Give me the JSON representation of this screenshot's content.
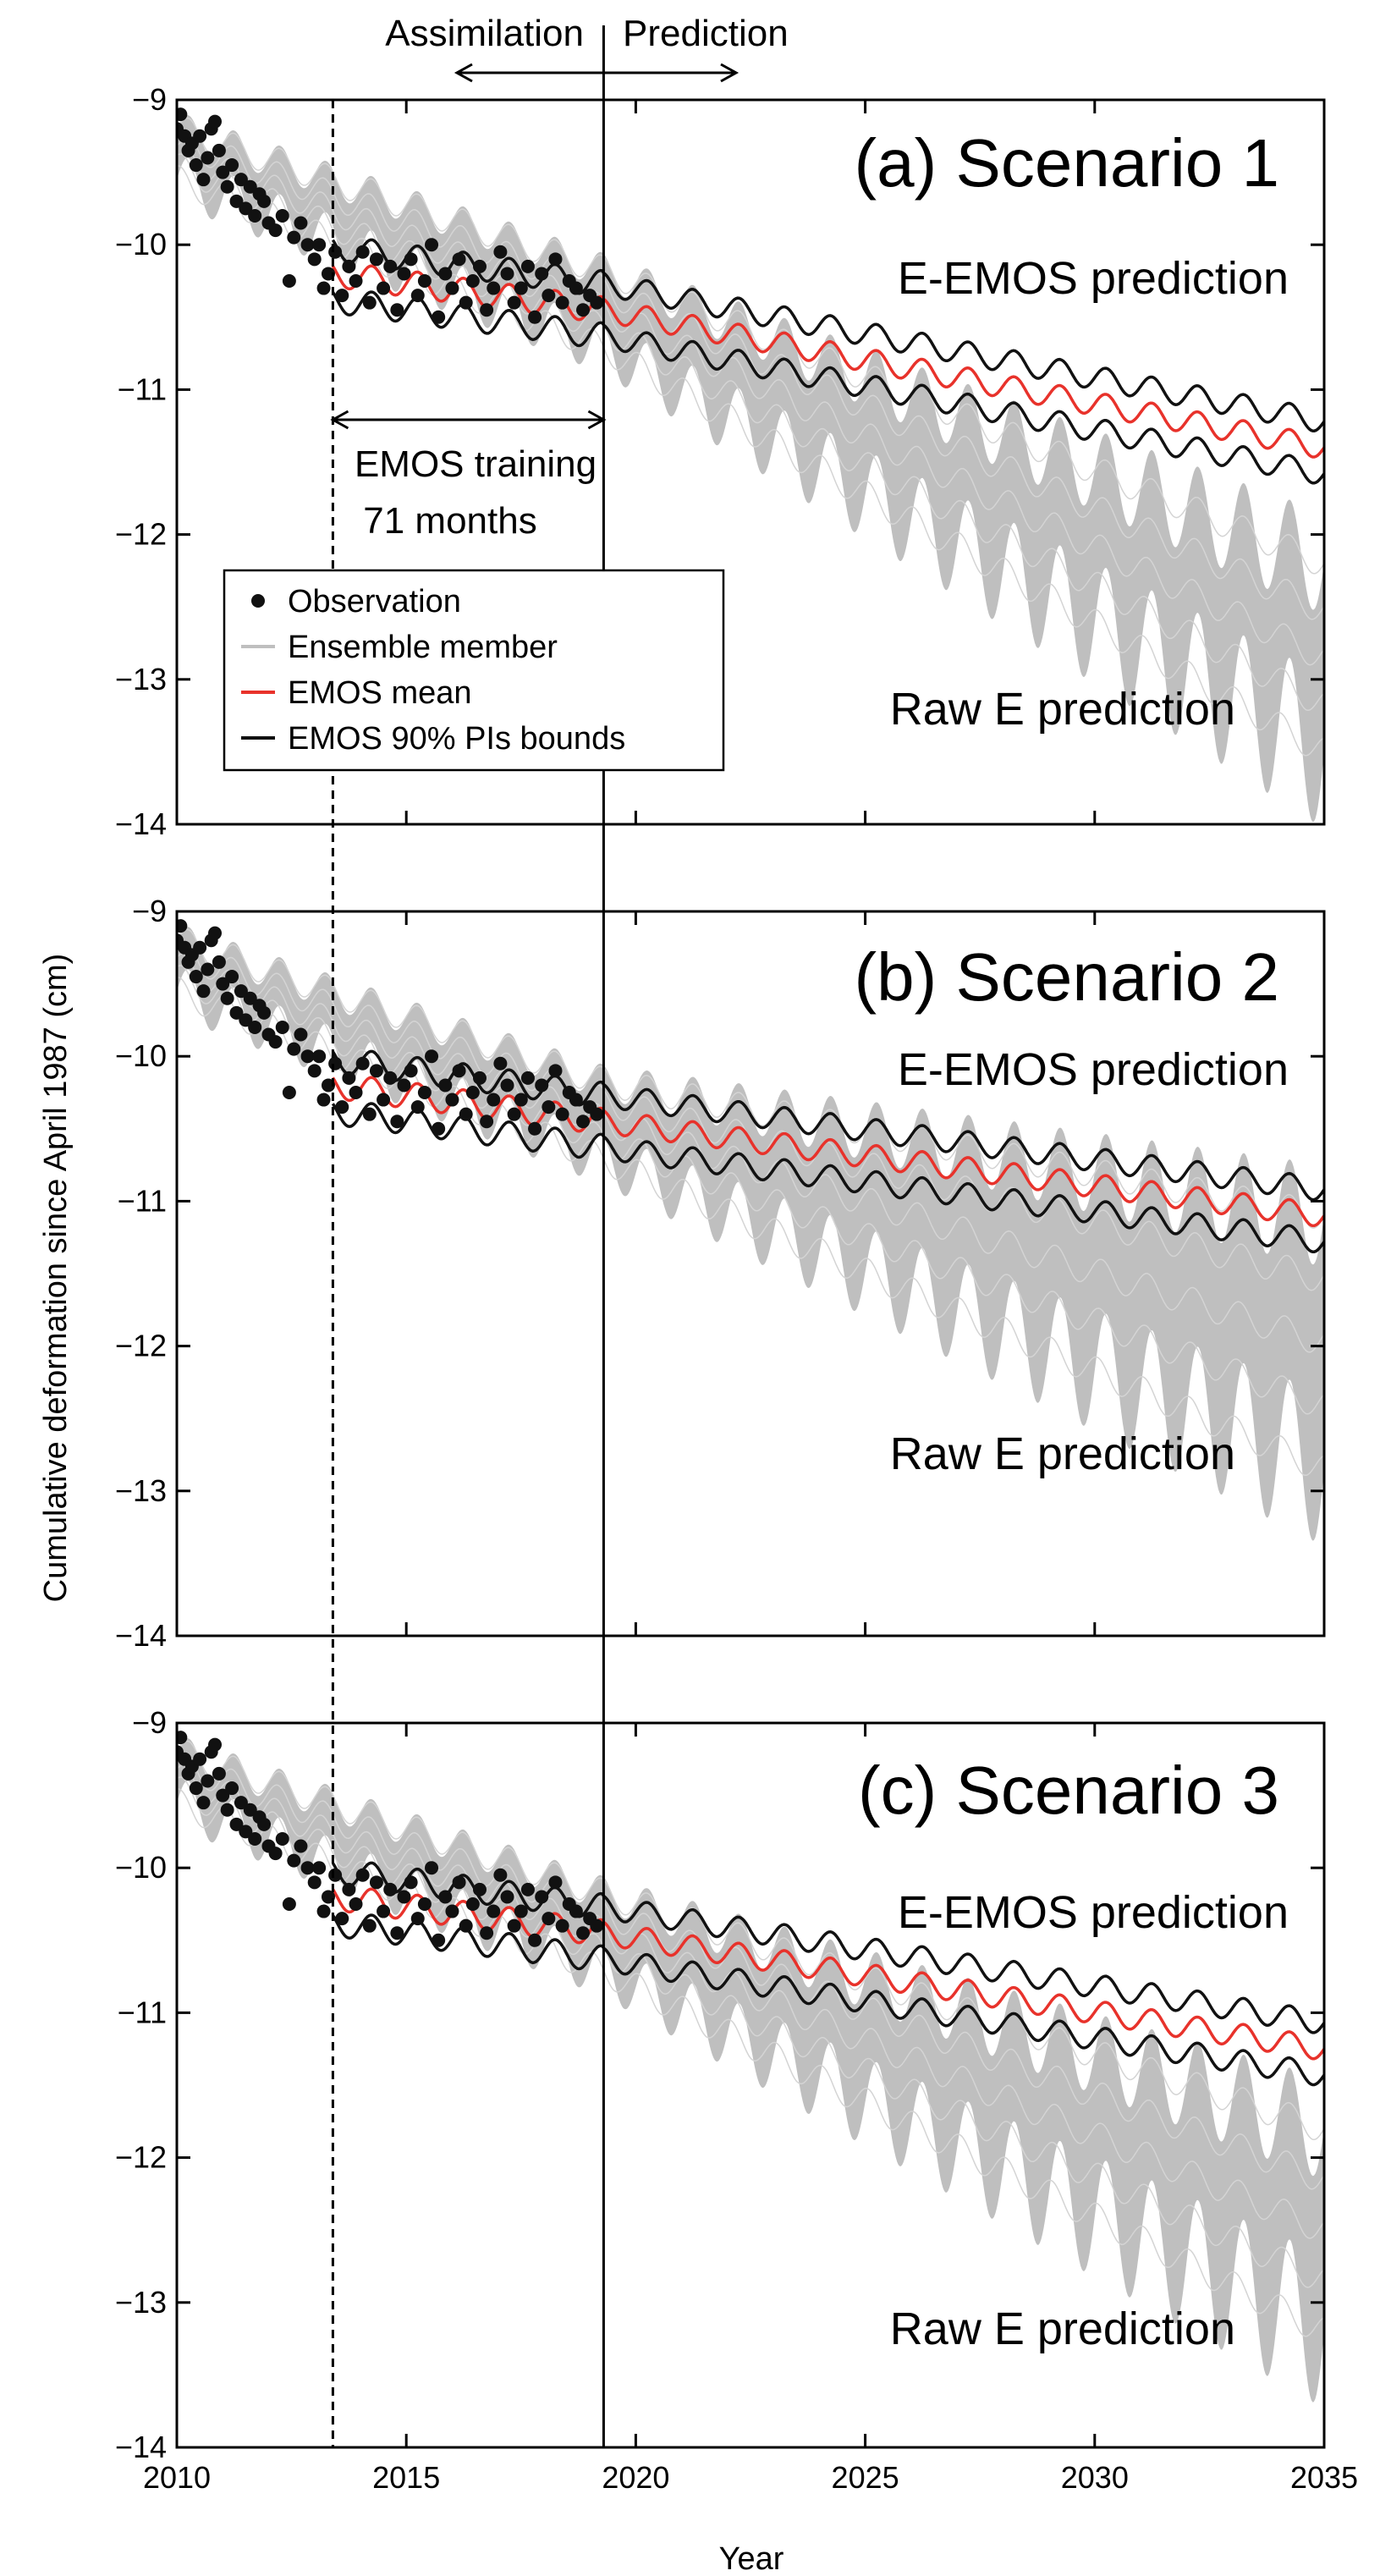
{
  "figure": {
    "ylabel": "Cumulative deformation since April 1987 (cm)",
    "xlabel": "Year",
    "top_labels": {
      "assimilation": "Assimilation",
      "prediction": "Prediction"
    },
    "training_label_line1": "EMOS training",
    "training_label_line2": "71 months",
    "legend": {
      "observation": "Observation",
      "ensemble": "Ensemble member",
      "emos_mean": "EMOS mean",
      "emos_bounds": "EMOS 90% PIs bounds"
    },
    "colors": {
      "ensemble": "#bfbfbf",
      "emos_mean": "#e8322b",
      "bounds": "#111111",
      "obs": "#111111"
    }
  },
  "chart_data": [
    {
      "type": "line",
      "title": "(a) Scenario 1",
      "eemos_label": "E-EMOS prediction",
      "raw_label": "Raw E prediction",
      "xlim": [
        2010,
        2035
      ],
      "ylim": [
        -14,
        -9
      ],
      "xticks": [
        2010,
        2015,
        2020,
        2025,
        2030,
        2035
      ],
      "yticks": [
        -14,
        -13,
        -12,
        -11,
        -10,
        -9
      ],
      "ytick_labels": [
        "−14",
        "−13",
        "−12",
        "−11",
        "−10",
        "−9"
      ],
      "assimilation_start": 2013.4,
      "assimilation_end": 2019.3,
      "emos_mean_at_2035": -11.4,
      "emos_band_halfwidth": 0.18,
      "ensemble_upper_at_2035": -12.2,
      "ensemble_lower_at_2035": -13.5
    },
    {
      "type": "line",
      "title": "(b) Scenario 2",
      "eemos_label": "E-EMOS prediction",
      "raw_label": "Raw E prediction",
      "xlim": [
        2010,
        2035
      ],
      "ylim": [
        -14,
        -9
      ],
      "xticks": [
        2010,
        2015,
        2020,
        2025,
        2030,
        2035
      ],
      "yticks": [
        -14,
        -13,
        -12,
        -11,
        -10,
        -9
      ],
      "ytick_labels": [
        "−14",
        "−13",
        "−12",
        "−11",
        "−10",
        "−9"
      ],
      "assimilation_start": 2013.4,
      "assimilation_end": 2019.3,
      "emos_mean_at_2035": -11.1,
      "emos_band_halfwidth": 0.18,
      "ensemble_upper_at_2035": -11.1,
      "ensemble_lower_at_2035": -12.85
    },
    {
      "type": "line",
      "title": "(c) Scenario 3",
      "eemos_label": "E-EMOS prediction",
      "raw_label": "Raw E prediction",
      "xlim": [
        2010,
        2035
      ],
      "ylim": [
        -14,
        -9
      ],
      "xticks": [
        2010,
        2015,
        2020,
        2025,
        2030,
        2035
      ],
      "yticks": [
        -14,
        -13,
        -12,
        -11,
        -10,
        -9
      ],
      "ytick_labels": [
        "−14",
        "−13",
        "−12",
        "−11",
        "−10",
        "−9"
      ],
      "assimilation_start": 2013.4,
      "assimilation_end": 2019.3,
      "emos_mean_at_2035": -11.25,
      "emos_band_halfwidth": 0.18,
      "ensemble_upper_at_2035": -11.8,
      "ensemble_lower_at_2035": -13.2
    }
  ],
  "observations": {
    "x": [
      2010.0,
      2010.08,
      2010.17,
      2010.25,
      2010.33,
      2010.42,
      2010.5,
      2010.58,
      2010.67,
      2010.75,
      2010.83,
      2010.92,
      2011.0,
      2011.1,
      2011.2,
      2011.3,
      2011.4,
      2011.5,
      2011.6,
      2011.7,
      2011.8,
      2011.9,
      2012.0,
      2012.15,
      2012.3,
      2012.45,
      2012.55,
      2012.7,
      2012.85,
      2013.0,
      2013.1,
      2013.2,
      2013.3,
      2013.45,
      2013.6,
      2013.75,
      2013.9,
      2014.05,
      2014.2,
      2014.35,
      2014.5,
      2014.65,
      2014.8,
      2014.95,
      2015.1,
      2015.25,
      2015.4,
      2015.55,
      2015.7,
      2015.85,
      2016.0,
      2016.15,
      2016.3,
      2016.45,
      2016.6,
      2016.75,
      2016.9,
      2017.05,
      2017.2,
      2017.35,
      2017.5,
      2017.65,
      2017.8,
      2017.95,
      2018.1,
      2018.25,
      2018.4,
      2018.55,
      2018.7,
      2018.85,
      2019.0,
      2019.15
    ],
    "y": [
      -9.2,
      -9.1,
      -9.25,
      -9.35,
      -9.3,
      -9.45,
      -9.25,
      -9.55,
      -9.4,
      -9.2,
      -9.15,
      -9.35,
      -9.5,
      -9.6,
      -9.45,
      -9.7,
      -9.55,
      -9.75,
      -9.6,
      -9.8,
      -9.65,
      -9.7,
      -9.85,
      -9.9,
      -9.8,
      -10.25,
      -9.95,
      -9.85,
      -10.0,
      -10.1,
      -10.0,
      -10.3,
      -10.2,
      -10.05,
      -10.35,
      -10.15,
      -10.25,
      -10.05,
      -10.4,
      -10.1,
      -10.3,
      -10.15,
      -10.45,
      -10.2,
      -10.1,
      -10.35,
      -10.25,
      -10.0,
      -10.5,
      -10.2,
      -10.3,
      -10.1,
      -10.4,
      -10.25,
      -10.15,
      -10.45,
      -10.3,
      -10.05,
      -10.2,
      -10.4,
      -10.3,
      -10.15,
      -10.5,
      -10.2,
      -10.35,
      -10.1,
      -10.4,
      -10.25,
      -10.3,
      -10.45,
      -10.35,
      -10.4
    ]
  }
}
